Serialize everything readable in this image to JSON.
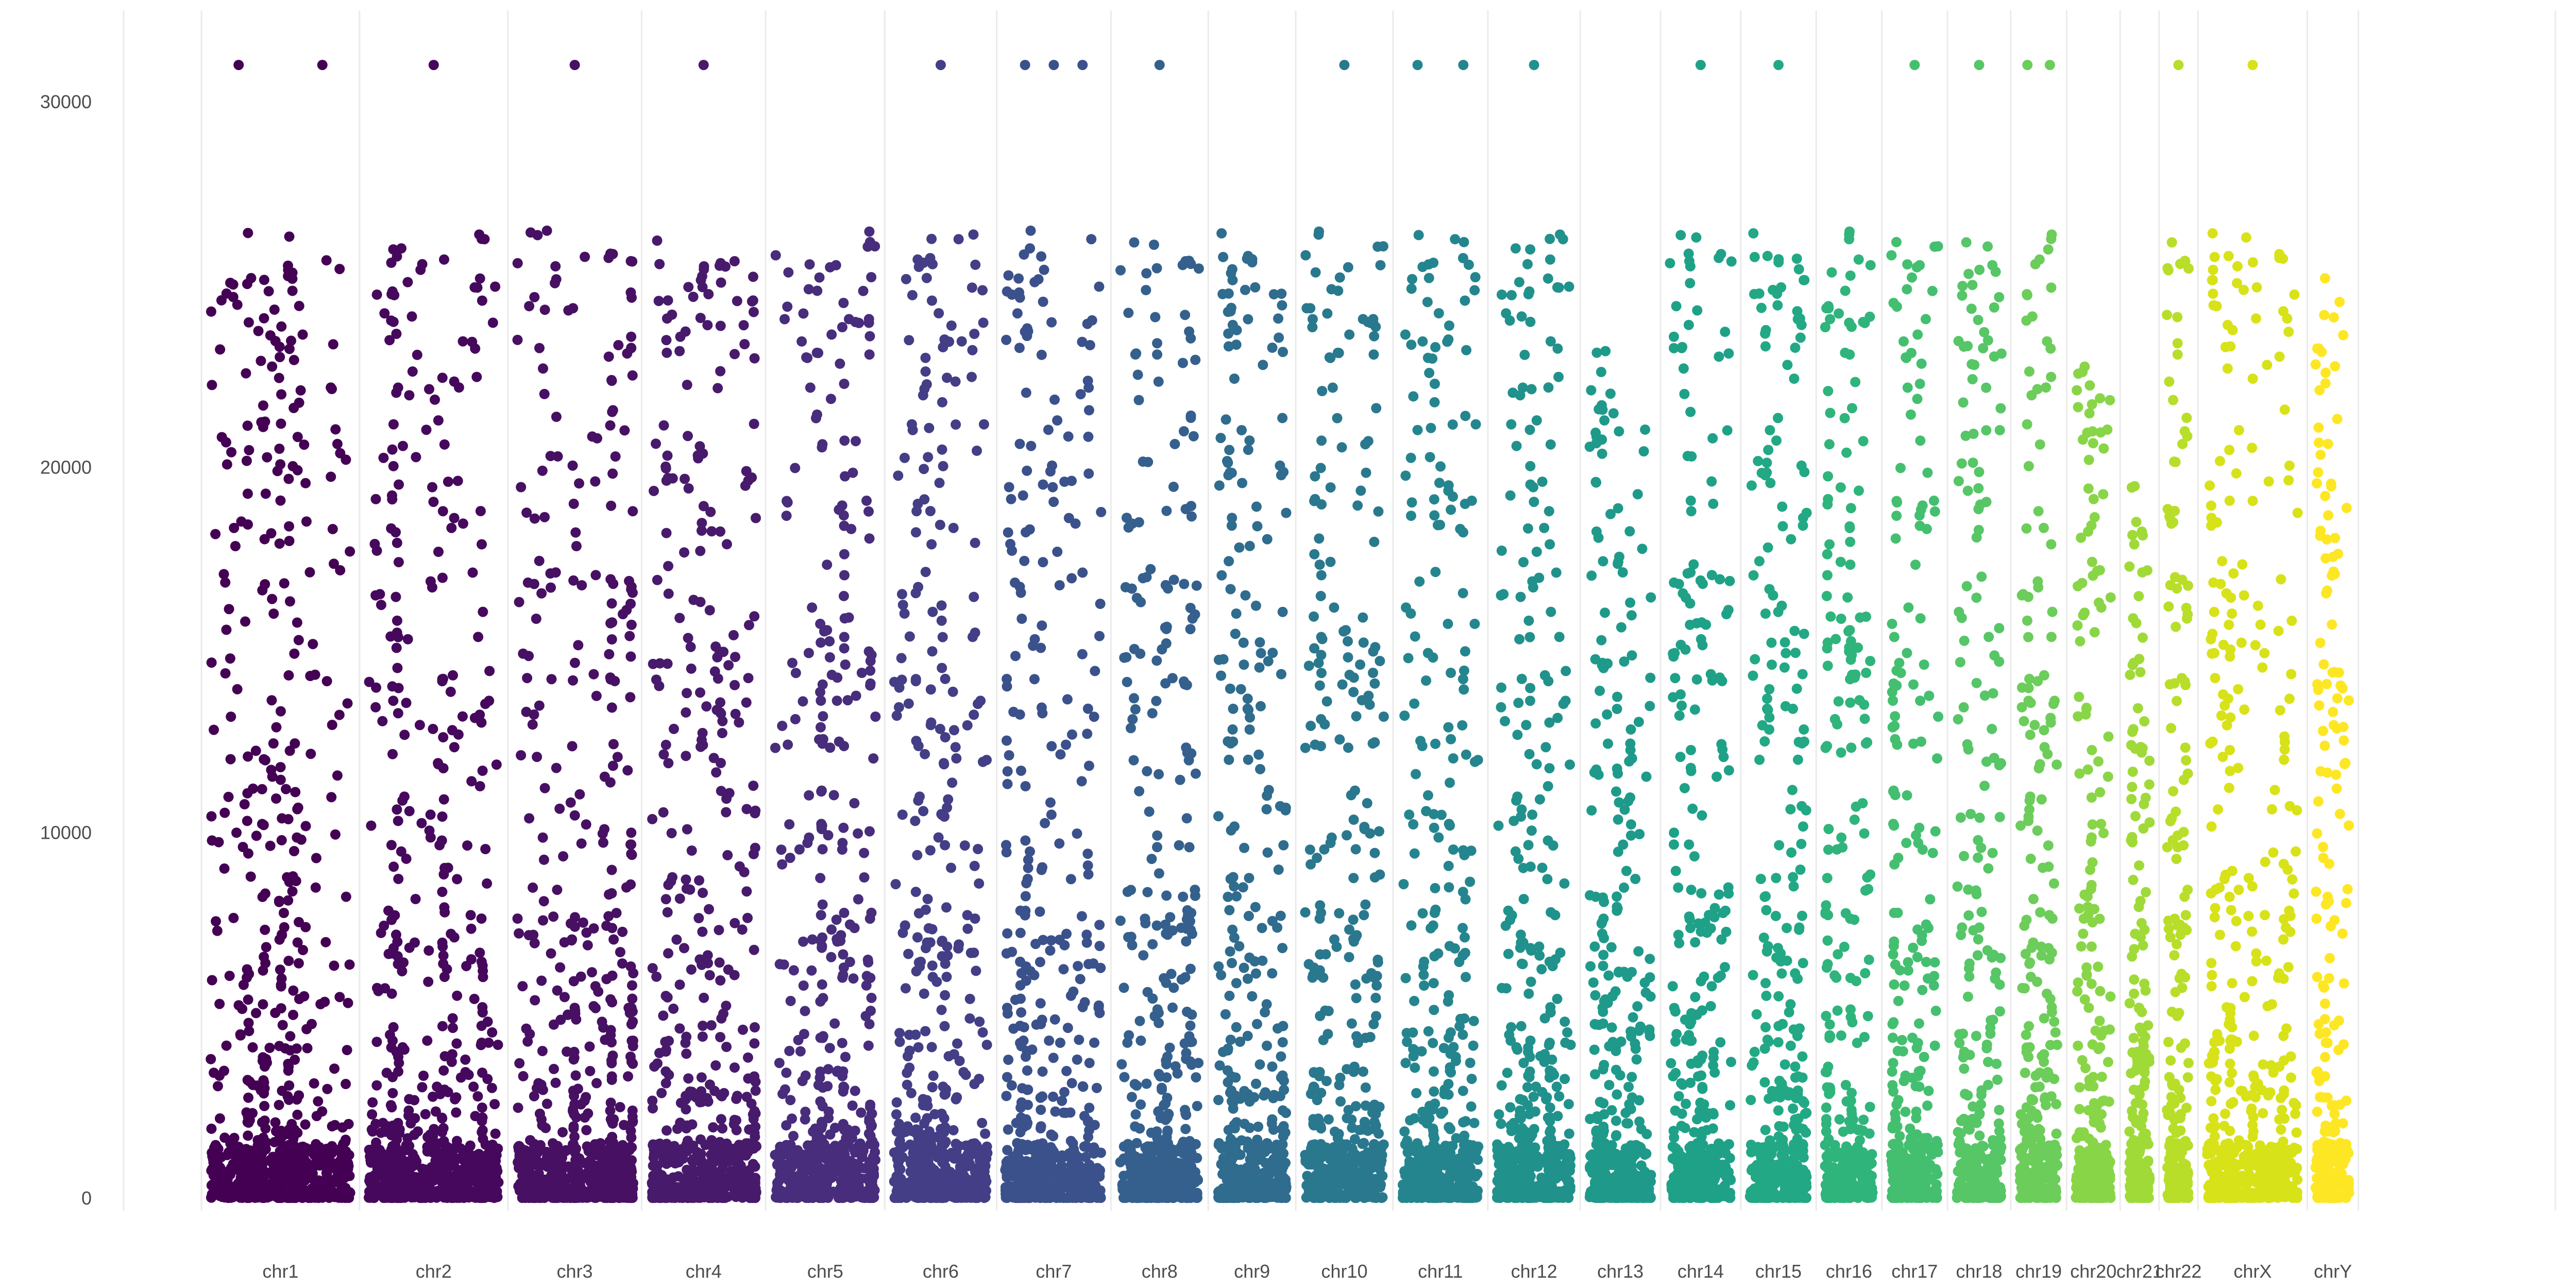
{
  "chart_data": {
    "type": "scatter",
    "title": "",
    "xlabel": "",
    "ylabel": "",
    "ylim": [
      0,
      31000
    ],
    "y_ticks": [
      0,
      10000,
      20000,
      30000
    ],
    "y_tick_labels": [
      "0",
      "10000",
      "20000",
      "30000"
    ],
    "grid": true,
    "legend": "none",
    "x_axis_range": [
      0,
      100
    ],
    "categories": [
      {
        "name": "chr1",
        "start": 3.2,
        "end": 9.7,
        "color": "#440154",
        "max_value": 26500,
        "top_hits": [
          31000,
          31000
        ]
      },
      {
        "name": "chr2",
        "start": 9.7,
        "end": 15.8,
        "color": "#46085C",
        "max_value": 26500,
        "top_hits": [
          31000
        ]
      },
      {
        "name": "chr3",
        "start": 15.8,
        "end": 21.3,
        "color": "#471063",
        "max_value": 26500,
        "top_hits": [
          31000
        ]
      },
      {
        "name": "chr4",
        "start": 21.3,
        "end": 26.4,
        "color": "#481A6C",
        "max_value": 26300,
        "top_hits": [
          31000
        ]
      },
      {
        "name": "chr5",
        "start": 26.4,
        "end": 31.3,
        "color": "#472D7B",
        "max_value": 26500,
        "top_hits": []
      },
      {
        "name": "chr6",
        "start": 31.3,
        "end": 35.9,
        "color": "#433E85",
        "max_value": 26500,
        "top_hits": [
          31000
        ]
      },
      {
        "name": "chr7",
        "start": 35.9,
        "end": 40.6,
        "color": "#3B518B",
        "max_value": 26500,
        "top_hits": [
          31000,
          31000,
          31000
        ]
      },
      {
        "name": "chr8",
        "start": 40.6,
        "end": 44.6,
        "color": "#35608D",
        "max_value": 26300,
        "top_hits": [
          31000
        ]
      },
      {
        "name": "chr9",
        "start": 44.6,
        "end": 48.2,
        "color": "#2F6C8E",
        "max_value": 26500,
        "top_hits": []
      },
      {
        "name": "chr10",
        "start": 48.2,
        "end": 52.2,
        "color": "#2A788E",
        "max_value": 26500,
        "top_hits": [
          31000
        ]
      },
      {
        "name": "chr11",
        "start": 52.2,
        "end": 56.1,
        "color": "#25858E",
        "max_value": 26500,
        "top_hits": [
          31000,
          31000
        ]
      },
      {
        "name": "chr12",
        "start": 56.1,
        "end": 59.9,
        "color": "#21918C",
        "max_value": 26500,
        "top_hits": [
          31000
        ]
      },
      {
        "name": "chr13",
        "start": 59.9,
        "end": 63.2,
        "color": "#1F9A8A",
        "max_value": 23200,
        "top_hits": []
      },
      {
        "name": "chr14",
        "start": 63.2,
        "end": 66.5,
        "color": "#1FA188",
        "max_value": 26500,
        "top_hits": [
          31000
        ]
      },
      {
        "name": "chr15",
        "start": 66.5,
        "end": 69.6,
        "color": "#22A884",
        "max_value": 26500,
        "top_hits": [
          31000
        ]
      },
      {
        "name": "chr16",
        "start": 69.6,
        "end": 72.3,
        "color": "#2FB47C",
        "max_value": 26500,
        "top_hits": []
      },
      {
        "name": "chr17",
        "start": 72.3,
        "end": 75.0,
        "color": "#44BF70",
        "max_value": 26500,
        "top_hits": [
          31000
        ]
      },
      {
        "name": "chr18",
        "start": 75.0,
        "end": 77.6,
        "color": "#56C667",
        "max_value": 26300,
        "top_hits": [
          31000
        ]
      },
      {
        "name": "chr19",
        "start": 77.6,
        "end": 79.9,
        "color": "#6CCD5A",
        "max_value": 26500,
        "top_hits": [
          31000,
          31000
        ]
      },
      {
        "name": "chr20",
        "start": 79.9,
        "end": 82.1,
        "color": "#89D548",
        "max_value": 23200,
        "top_hits": []
      },
      {
        "name": "chr21",
        "start": 82.1,
        "end": 83.7,
        "color": "#A0DA39",
        "max_value": 19500,
        "top_hits": []
      },
      {
        "name": "chr22",
        "start": 83.7,
        "end": 85.3,
        "color": "#B8DE29",
        "max_value": 26300,
        "top_hits": [
          31000
        ]
      },
      {
        "name": "chrX",
        "start": 85.3,
        "end": 89.8,
        "color": "#D8E219",
        "max_value": 26500,
        "top_hits": [
          31000
        ]
      },
      {
        "name": "chrY",
        "start": 89.8,
        "end": 91.9,
        "color": "#FDE725",
        "max_value": 25300,
        "top_hits": []
      }
    ]
  }
}
